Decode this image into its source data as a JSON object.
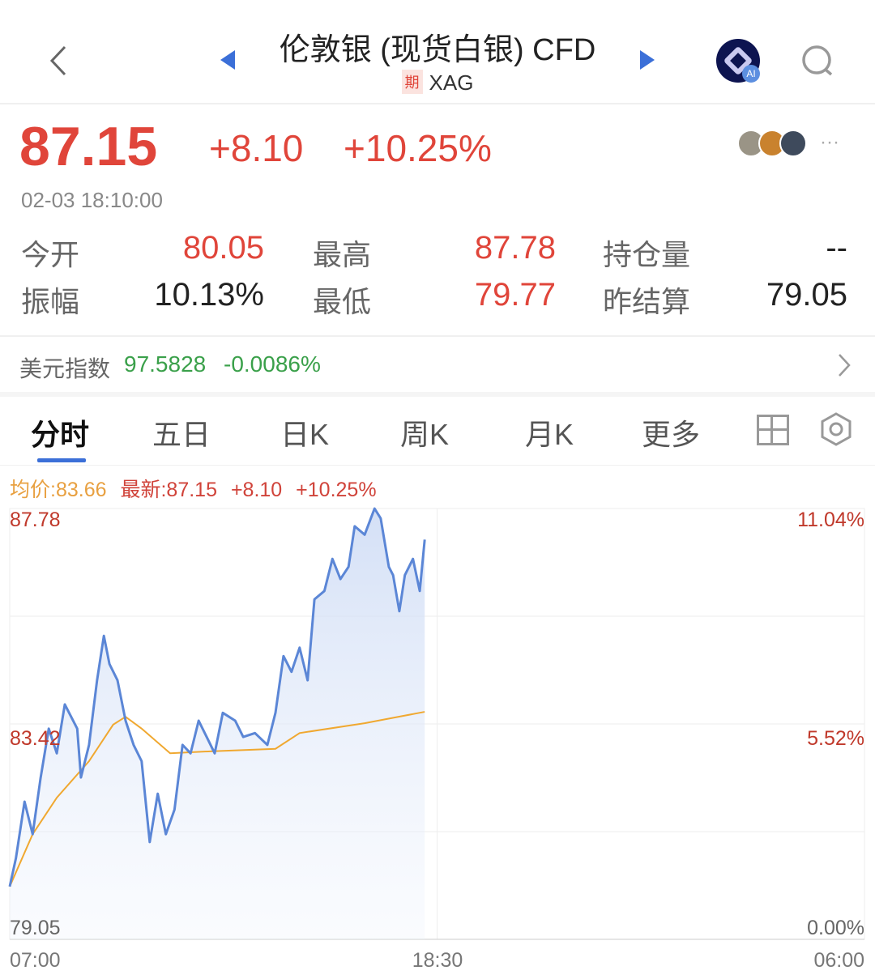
{
  "header": {
    "title": "伦敦银 (现货白银) CFD",
    "badge": "期",
    "code": "XAG",
    "icons": [
      "back-chevron-icon",
      "prev-triangle-icon",
      "next-triangle-icon",
      "ai-assistant-icon",
      "search-icon"
    ]
  },
  "quote": {
    "price": "87.15",
    "change": "+8.10",
    "change_pct": "+10.25%",
    "time": "02-03 18:10:00",
    "more": "···"
  },
  "stats": [
    {
      "label": "今开",
      "value": "80.05",
      "color": "red"
    },
    {
      "label": "最高",
      "value": "87.78",
      "color": "red"
    },
    {
      "label": "持仓量",
      "value": "--",
      "color": "dark"
    },
    {
      "label": "振幅",
      "value": "10.13%",
      "color": "dark"
    },
    {
      "label": "最低",
      "value": "79.77",
      "color": "red"
    },
    {
      "label": "昨结算",
      "value": "79.05",
      "color": "dark"
    }
  ],
  "dollar_index": {
    "label": "美元指数",
    "value": "97.5828",
    "change": "-0.0086%"
  },
  "tabs": [
    {
      "label": "分时",
      "active": true
    },
    {
      "label": "五日"
    },
    {
      "label": "日K"
    },
    {
      "label": "周K"
    },
    {
      "label": "月K"
    },
    {
      "label": "更多"
    }
  ],
  "colors": {
    "up": "#e0453a",
    "down": "#3aa04a",
    "price_line": "#5b86d6",
    "avg_line": "#f0a830",
    "accent": "#3b6fd8"
  },
  "chart_data": {
    "type": "line",
    "legend": {
      "avg": "均价:83.66",
      "latest": "最新:87.15",
      "change": "+8.10",
      "change_pct": "+10.25%"
    },
    "y_left_ticks": [
      "87.78",
      "83.42",
      "79.05"
    ],
    "y_right_ticks": [
      "11.04%",
      "5.52%",
      "0.00%"
    ],
    "x_ticks": [
      "07:00",
      "18:30",
      "06:00"
    ],
    "ylim": [
      79.05,
      87.78
    ],
    "xlim": [
      "07:00",
      "06:00"
    ],
    "grid": true,
    "series": [
      {
        "key": "price",
        "points": [
          [
            "07:00",
            80.12
          ],
          [
            "07:10",
            80.69
          ],
          [
            "07:24",
            81.84
          ],
          [
            "07:37",
            81.18
          ],
          [
            "07:50",
            82.33
          ],
          [
            "08:03",
            83.32
          ],
          [
            "08:16",
            82.82
          ],
          [
            "08:29",
            83.81
          ],
          [
            "08:49",
            83.32
          ],
          [
            "08:55",
            82.33
          ],
          [
            "09:08",
            82.99
          ],
          [
            "09:21",
            84.3
          ],
          [
            "09:32",
            85.2
          ],
          [
            "09:41",
            84.63
          ],
          [
            "09:54",
            84.3
          ],
          [
            "10:07",
            83.48
          ],
          [
            "10:20",
            82.99
          ],
          [
            "10:33",
            82.66
          ],
          [
            "10:46",
            81.02
          ],
          [
            "10:59",
            82.0
          ],
          [
            "11:12",
            81.18
          ],
          [
            "11:26",
            81.68
          ],
          [
            "11:39",
            82.99
          ],
          [
            "11:52",
            82.82
          ],
          [
            "12:05",
            83.48
          ],
          [
            "12:18",
            83.15
          ],
          [
            "12:31",
            82.82
          ],
          [
            "12:44",
            83.64
          ],
          [
            "13:04",
            83.48
          ],
          [
            "13:17",
            83.15
          ],
          [
            "13:36",
            83.23
          ],
          [
            "13:56",
            82.99
          ],
          [
            "14:09",
            83.64
          ],
          [
            "14:22",
            84.79
          ],
          [
            "14:35",
            84.47
          ],
          [
            "14:48",
            84.96
          ],
          [
            "15:01",
            84.3
          ],
          [
            "15:12",
            85.94
          ],
          [
            "15:28",
            86.11
          ],
          [
            "15:41",
            86.76
          ],
          [
            "15:54",
            86.35
          ],
          [
            "16:07",
            86.6
          ],
          [
            "16:17",
            87.42
          ],
          [
            "16:33",
            87.25
          ],
          [
            "16:49",
            87.78
          ],
          [
            "16:59",
            87.58
          ],
          [
            "17:12",
            86.6
          ],
          [
            "17:19",
            86.43
          ],
          [
            "17:29",
            85.7
          ],
          [
            "17:38",
            86.43
          ],
          [
            "17:51",
            86.76
          ],
          [
            "18:02",
            86.11
          ],
          [
            "18:10",
            87.15
          ]
        ]
      },
      {
        "key": "avg",
        "points": [
          [
            "07:00",
            80.12
          ],
          [
            "07:37",
            81.18
          ],
          [
            "08:16",
            81.92
          ],
          [
            "09:08",
            82.66
          ],
          [
            "09:47",
            83.4
          ],
          [
            "10:07",
            83.56
          ],
          [
            "10:33",
            83.32
          ],
          [
            "11:19",
            82.82
          ],
          [
            "12:24",
            82.86
          ],
          [
            "14:09",
            82.91
          ],
          [
            "14:48",
            83.23
          ],
          [
            "16:33",
            83.43
          ],
          [
            "18:10",
            83.66
          ]
        ]
      }
    ]
  }
}
